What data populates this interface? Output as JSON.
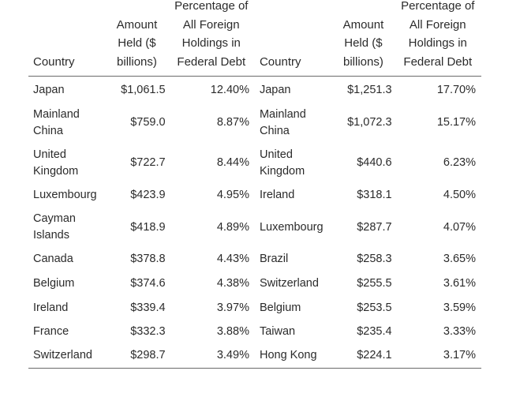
{
  "headers": {
    "country": "Country",
    "amount": "Amount Held ($ billions)",
    "percentage": "Percentage of All Foreign Holdings in Federal Debt"
  },
  "rows": [
    {
      "left": {
        "country": "Japan",
        "amount": "$1,061.5",
        "pct": "12.40%"
      },
      "right": {
        "country": "Japan",
        "amount": "$1,251.3",
        "pct": "17.70%"
      }
    },
    {
      "left": {
        "country": "Mainland China",
        "amount": "$759.0",
        "pct": "8.87%"
      },
      "right": {
        "country": "Mainland China",
        "amount": "$1,072.3",
        "pct": "15.17%"
      }
    },
    {
      "left": {
        "country": "United Kingdom",
        "amount": "$722.7",
        "pct": "8.44%"
      },
      "right": {
        "country": "United Kingdom",
        "amount": "$440.6",
        "pct": "6.23%"
      }
    },
    {
      "left": {
        "country": "Luxembourg",
        "amount": "$423.9",
        "pct": "4.95%"
      },
      "right": {
        "country": "Ireland",
        "amount": "$318.1",
        "pct": "4.50%"
      }
    },
    {
      "left": {
        "country": "Cayman Islands",
        "amount": "$418.9",
        "pct": "4.89%"
      },
      "right": {
        "country": "Luxembourg",
        "amount": "$287.7",
        "pct": "4.07%"
      }
    },
    {
      "left": {
        "country": "Canada",
        "amount": "$378.8",
        "pct": "4.43%"
      },
      "right": {
        "country": "Brazil",
        "amount": "$258.3",
        "pct": "3.65%"
      }
    },
    {
      "left": {
        "country": "Belgium",
        "amount": "$374.6",
        "pct": "4.38%"
      },
      "right": {
        "country": "Switzerland",
        "amount": "$255.5",
        "pct": "3.61%"
      }
    },
    {
      "left": {
        "country": "Ireland",
        "amount": "$339.4",
        "pct": "3.97%"
      },
      "right": {
        "country": "Belgium",
        "amount": "$253.5",
        "pct": "3.59%"
      }
    },
    {
      "left": {
        "country": "France",
        "amount": "$332.3",
        "pct": "3.88%"
      },
      "right": {
        "country": "Taiwan",
        "amount": "$235.4",
        "pct": "3.33%"
      }
    },
    {
      "left": {
        "country": "Switzerland",
        "amount": "$298.7",
        "pct": "3.49%"
      },
      "right": {
        "country": "Hong Kong",
        "amount": "$224.1",
        "pct": "3.17%"
      }
    }
  ]
}
